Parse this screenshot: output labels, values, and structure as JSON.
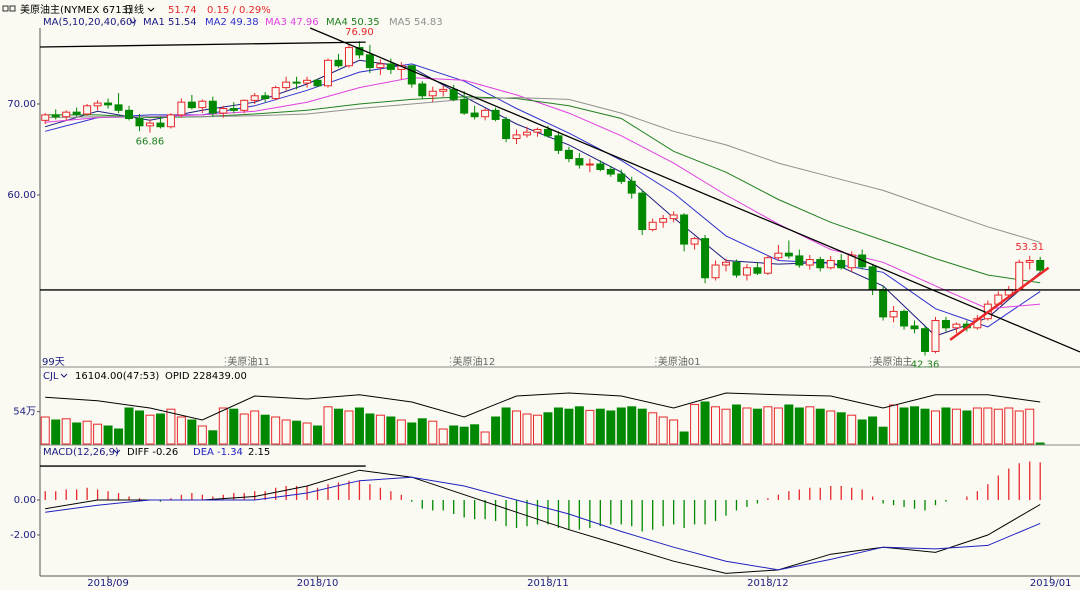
{
  "header": {
    "symbol": "美原油主(NYMEX 6713)",
    "period": "日线",
    "price": "51.74",
    "change": "0.15 / 0.29%"
  },
  "chart_data": [
    {
      "type": "candlestick",
      "title": "MA(5,10,20,40,60)",
      "title_color": "#1a1a80",
      "up_color": "#e8282b",
      "down_color": "#008800",
      "xlim": [
        -0.5,
        98.8
      ],
      "ylim": [
        42.3,
        78.35
      ],
      "yticks": [
        {
          "value": 70,
          "label": "70.00"
        },
        {
          "value": 60,
          "label": "60.00"
        }
      ],
      "span_label": "99天",
      "ohlc": [
        [
          68.2,
          69.0,
          67.8,
          68.8
        ],
        [
          68.8,
          69.4,
          68.3,
          68.6
        ],
        [
          68.6,
          69.3,
          68.2,
          69.1
        ],
        [
          69.1,
          69.6,
          68.6,
          68.9
        ],
        [
          68.9,
          70.0,
          68.7,
          69.8
        ],
        [
          69.8,
          70.4,
          69.3,
          70.1
        ],
        [
          70.1,
          70.6,
          69.5,
          69.9
        ],
        [
          69.9,
          71.2,
          69.0,
          69.3
        ],
        [
          69.3,
          69.8,
          68.2,
          68.4
        ],
        [
          68.4,
          68.9,
          67.0,
          67.6
        ],
        [
          67.6,
          68.3,
          66.86,
          67.9
        ],
        [
          67.9,
          68.6,
          67.3,
          67.5
        ],
        [
          67.5,
          69.0,
          67.3,
          68.8
        ],
        [
          68.8,
          70.6,
          68.5,
          70.2
        ],
        [
          70.2,
          71.0,
          69.4,
          69.6
        ],
        [
          69.6,
          70.5,
          69.0,
          70.3
        ],
        [
          70.3,
          70.8,
          68.6,
          69.0
        ],
        [
          69.0,
          69.8,
          68.5,
          69.5
        ],
        [
          69.5,
          70.2,
          69.0,
          69.3
        ],
        [
          69.3,
          70.5,
          69.0,
          70.4
        ],
        [
          70.4,
          71.2,
          70.0,
          70.9
        ],
        [
          70.9,
          71.3,
          70.2,
          70.6
        ],
        [
          70.6,
          72.0,
          70.4,
          71.8
        ],
        [
          71.8,
          73.0,
          71.5,
          72.4
        ],
        [
          72.4,
          73.0,
          71.6,
          72.3
        ],
        [
          72.3,
          73.0,
          71.8,
          72.6
        ],
        [
          72.6,
          72.8,
          71.9,
          72.0
        ],
        [
          72.0,
          75.0,
          71.8,
          74.8
        ],
        [
          74.8,
          75.5,
          74.0,
          74.2
        ],
        [
          74.2,
          76.6,
          74.0,
          76.2
        ],
        [
          76.2,
          76.9,
          75.0,
          75.4
        ],
        [
          75.4,
          76.5,
          73.4,
          74.0
        ],
        [
          74.0,
          74.9,
          73.2,
          74.4
        ],
        [
          74.4,
          75.0,
          73.3,
          73.8
        ],
        [
          73.8,
          74.6,
          72.7,
          74.2
        ],
        [
          74.2,
          74.3,
          71.8,
          72.2
        ],
        [
          72.2,
          72.5,
          70.6,
          70.9
        ],
        [
          70.9,
          71.9,
          70.2,
          71.4
        ],
        [
          71.4,
          72.0,
          70.8,
          71.6
        ],
        [
          71.6,
          72.1,
          70.3,
          70.5
        ],
        [
          70.5,
          71.4,
          68.8,
          69.0
        ],
        [
          69.0,
          69.8,
          68.3,
          68.6
        ],
        [
          68.6,
          69.5,
          68.2,
          69.3
        ],
        [
          69.3,
          69.6,
          68.1,
          68.3
        ],
        [
          68.3,
          68.6,
          65.8,
          66.2
        ],
        [
          66.2,
          67.2,
          65.6,
          66.6
        ],
        [
          66.6,
          67.5,
          66.3,
          66.9
        ],
        [
          66.9,
          67.4,
          66.4,
          67.2
        ],
        [
          67.2,
          67.6,
          66.3,
          66.5
        ],
        [
          66.5,
          67.0,
          64.5,
          64.9
        ],
        [
          64.9,
          65.3,
          63.6,
          64.0
        ],
        [
          64.0,
          64.6,
          62.9,
          63.3
        ],
        [
          63.3,
          64.0,
          62.5,
          63.4
        ],
        [
          63.4,
          63.8,
          62.6,
          62.8
        ],
        [
          62.8,
          63.2,
          62.0,
          62.3
        ],
        [
          62.3,
          62.8,
          61.2,
          61.5
        ],
        [
          61.5,
          62.0,
          59.6,
          60.2
        ],
        [
          60.2,
          60.6,
          55.6,
          56.2
        ],
        [
          56.2,
          57.4,
          56.0,
          57.0
        ],
        [
          57.0,
          57.8,
          56.4,
          57.4
        ],
        [
          57.4,
          58.2,
          57.0,
          57.8
        ],
        [
          57.8,
          58.0,
          53.8,
          54.6
        ],
        [
          54.6,
          55.4,
          54.0,
          55.2
        ],
        [
          55.2,
          55.6,
          50.3,
          50.9
        ],
        [
          50.9,
          52.8,
          50.6,
          52.3
        ],
        [
          52.3,
          53.0,
          51.6,
          52.6
        ],
        [
          52.6,
          52.9,
          50.9,
          51.2
        ],
        [
          51.2,
          52.4,
          50.6,
          52.0
        ],
        [
          52.0,
          52.6,
          51.2,
          51.4
        ],
        [
          51.4,
          53.4,
          51.2,
          53.1
        ],
        [
          53.1,
          54.5,
          52.8,
          53.6
        ],
        [
          53.6,
          55.0,
          53.0,
          53.3
        ],
        [
          53.3,
          54.0,
          52.0,
          52.3
        ],
        [
          52.3,
          53.4,
          51.8,
          52.9
        ],
        [
          52.9,
          53.2,
          51.6,
          52.0
        ],
        [
          52.0,
          53.3,
          51.8,
          52.8
        ],
        [
          52.8,
          53.5,
          51.8,
          52.0
        ],
        [
          52.0,
          53.8,
          51.5,
          53.4
        ],
        [
          53.4,
          54.0,
          51.8,
          52.1
        ],
        [
          52.1,
          52.4,
          49.0,
          49.6
        ],
        [
          49.6,
          50.0,
          46.2,
          46.6
        ],
        [
          46.6,
          47.8,
          46.0,
          47.2
        ],
        [
          47.2,
          47.4,
          45.2,
          45.6
        ],
        [
          45.6,
          46.2,
          44.8,
          45.3
        ],
        [
          45.3,
          45.6,
          42.36,
          42.8
        ],
        [
          42.8,
          46.6,
          42.6,
          46.2
        ],
        [
          46.2,
          46.6,
          45.0,
          45.4
        ],
        [
          45.4,
          46.0,
          44.8,
          45.8
        ],
        [
          45.8,
          46.2,
          45.0,
          45.4
        ],
        [
          45.4,
          46.8,
          45.2,
          46.4
        ],
        [
          46.4,
          48.4,
          46.2,
          48.0
        ],
        [
          48.0,
          49.4,
          47.8,
          49.0
        ],
        [
          49.0,
          50.0,
          48.6,
          49.6
        ],
        [
          49.6,
          52.9,
          49.4,
          52.6
        ],
        [
          52.6,
          53.31,
          51.8,
          52.8
        ],
        [
          52.8,
          53.2,
          51.5,
          51.74
        ]
      ],
      "line_x": [
        0,
        5,
        10,
        15,
        20,
        25,
        30,
        35,
        40,
        45,
        50,
        55,
        60,
        65,
        70,
        75,
        80,
        85,
        90,
        95
      ],
      "series": [
        {
          "name": "MA1 51.54",
          "color": "#1a1a80",
          "values": [
            67.5,
            69.2,
            68.2,
            69.3,
            70.2,
            72.2,
            74.8,
            74.0,
            70.8,
            67.8,
            65.5,
            62.5,
            57.5,
            52.8,
            52.4,
            52.6,
            50.0,
            44.5,
            46.5,
            51.5
          ]
        },
        {
          "name": "MA2 49.38",
          "color": "#3030d0",
          "values": [
            67.0,
            68.5,
            68.8,
            68.8,
            69.8,
            71.5,
            73.5,
            74.4,
            72.5,
            69.5,
            66.8,
            63.8,
            60.2,
            55.5,
            52.8,
            52.5,
            51.5,
            47.5,
            45.5,
            49.4
          ]
        },
        {
          "name": "MA3 47.96",
          "color": "#e040e0",
          "values": [
            68.0,
            68.5,
            68.6,
            68.8,
            69.2,
            70.2,
            71.8,
            72.9,
            72.6,
            71.0,
            69.0,
            66.5,
            63.5,
            60.0,
            56.8,
            54.0,
            52.6,
            50.0,
            47.5,
            48.0
          ]
        },
        {
          "name": "MA4 50.35",
          "color": "#208020",
          "values": [
            68.8,
            68.8,
            68.5,
            68.6,
            68.9,
            69.3,
            70.0,
            70.5,
            70.8,
            70.6,
            69.8,
            68.4,
            64.8,
            62.5,
            59.5,
            57.0,
            55.0,
            53.0,
            51.2,
            50.35
          ]
        },
        {
          "name": "MA5 54.83",
          "color": "#909090",
          "values": [
            68.5,
            68.6,
            68.6,
            68.6,
            68.7,
            68.9,
            69.5,
            70.0,
            70.5,
            70.7,
            70.5,
            69.0,
            67.0,
            65.5,
            63.5,
            62.0,
            60.5,
            58.5,
            56.5,
            54.8
          ]
        }
      ],
      "price_labels": [
        {
          "value": 76.9,
          "label": "76.90",
          "index": 30,
          "color": "#e8282b",
          "side": "above"
        },
        {
          "value": 66.86,
          "label": "66.86",
          "index": 10,
          "color": "#208020",
          "side": "below"
        },
        {
          "value": 42.36,
          "label": "42.36",
          "index": 84,
          "color": "#208020",
          "side": "below"
        },
        {
          "value": 53.31,
          "label": "53.31",
          "index": 94,
          "color": "#e8282b",
          "side": "above"
        }
      ],
      "contract_marks": [
        {
          "index": 17.2,
          "label": "美原油11"
        },
        {
          "index": 38.7,
          "label": "美原油12"
        },
        {
          "index": 58.3,
          "label": "美原油01"
        },
        {
          "index": 78.8,
          "label": "美原油主"
        }
      ],
      "drawings": [
        {
          "x": [
            -0.5,
            30.6
          ],
          "y": [
            76.26,
            76.8
          ],
          "color": "#000000"
        },
        {
          "x": [
            25.3,
            98.8
          ],
          "y": [
            78.35,
            42.75
          ],
          "color": "#000000"
        },
        {
          "x": [
            -0.5,
            98.8
          ],
          "y": [
            49.56,
            49.56
          ],
          "color": "#000000"
        },
        {
          "x": [
            86.4,
            95.8
          ],
          "y": [
            44.07,
            52.0
          ],
          "color": "#e8282b"
        }
      ]
    },
    {
      "type": "volume",
      "title": "CJL",
      "info": "16104.00(47:53)",
      "opid": "OPID 228439.00",
      "xlim": [
        -0.5,
        98.8
      ],
      "ylim": [
        0,
        110
      ],
      "yticks": [
        {
          "value": 54,
          "label": "54万"
        }
      ],
      "values": [
        45,
        40,
        42,
        35,
        38,
        33,
        30,
        25,
        60,
        55,
        48,
        50,
        58,
        45,
        40,
        30,
        22,
        60,
        58,
        50,
        55,
        48,
        45,
        40,
        38,
        35,
        30,
        62,
        58,
        55,
        60,
        50,
        48,
        45,
        40,
        35,
        42,
        38,
        25,
        30,
        28,
        32,
        20,
        45,
        60,
        55,
        50,
        48,
        52,
        60,
        58,
        62,
        56,
        58,
        55,
        60,
        62,
        58,
        52,
        45,
        40,
        20,
        66,
        70,
        62,
        58,
        65,
        60,
        58,
        62,
        60,
        65,
        60,
        62,
        58,
        55,
        52,
        48,
        40,
        45,
        28,
        65,
        60,
        62,
        58,
        55,
        60,
        58,
        55,
        60,
        60,
        58,
        60,
        55,
        58,
        1.6
      ],
      "line_x": [
        0,
        5,
        10,
        15,
        20,
        25,
        30,
        35,
        40,
        45,
        50,
        55,
        60,
        65,
        70,
        75,
        80,
        85,
        90,
        95
      ],
      "series": [
        {
          "color": "#000000",
          "values": [
            78,
            72,
            60,
            40,
            80,
            75,
            82,
            70,
            45,
            80,
            85,
            80,
            60,
            85,
            82,
            80,
            60,
            82,
            82,
            70
          ]
        }
      ]
    },
    {
      "type": "macd",
      "title": "MACD(12,26,9)",
      "macd_label": "2.15",
      "xlim": [
        -0.5,
        98.8
      ],
      "ylim": [
        -4.29,
        2.4
      ],
      "yticks": [
        {
          "value": 0,
          "label": "0.00"
        },
        {
          "value": -2,
          "label": "-2.00"
        }
      ],
      "xticks": [
        {
          "value": 6,
          "label": "2018/09"
        },
        {
          "value": 26,
          "label": "2018/10"
        },
        {
          "value": 48,
          "label": "2018/11"
        },
        {
          "value": 69,
          "label": "2018/12"
        },
        {
          "value": 96,
          "label": "2019/01"
        }
      ],
      "up_color": "#e8282b",
      "down_color": "#008800",
      "values": [
        0.5,
        0.5,
        0.6,
        0.6,
        0.7,
        0.6,
        0.5,
        0.4,
        0.2,
        0.1,
        0.0,
        -0.1,
        0.1,
        0.3,
        0.4,
        0.3,
        0.2,
        0.3,
        0.4,
        0.4,
        0.5,
        0.5,
        0.7,
        0.8,
        0.8,
        0.8,
        0.7,
        0.9,
        1.0,
        1.1,
        1.1,
        0.9,
        0.7,
        0.5,
        0.3,
        -0.1,
        -0.5,
        -0.6,
        -0.6,
        -0.8,
        -1.0,
        -1.1,
        -1.1,
        -1.2,
        -1.5,
        -1.6,
        -1.5,
        -1.4,
        -1.4,
        -1.6,
        -1.7,
        -1.7,
        -1.6,
        -1.5,
        -1.4,
        -1.4,
        -1.5,
        -1.8,
        -1.7,
        -1.5,
        -1.4,
        -1.6,
        -1.4,
        -1.4,
        -1.2,
        -0.9,
        -0.6,
        -0.4,
        -0.2,
        0.1,
        0.3,
        0.5,
        0.6,
        0.7,
        0.7,
        0.8,
        0.8,
        0.7,
        0.6,
        0.2,
        -0.2,
        -0.3,
        -0.4,
        -0.5,
        -0.6,
        -0.3,
        -0.1,
        0.0,
        0.2,
        0.5,
        0.9,
        1.4,
        1.8,
        2.1,
        2.2,
        2.15
      ],
      "line_x": [
        0,
        5,
        10,
        15,
        20,
        25,
        30,
        35,
        40,
        45,
        50,
        55,
        60,
        65,
        70,
        75,
        80,
        85,
        90,
        95
      ],
      "series": [
        {
          "name": "DIFF -0.26",
          "color": "#000000",
          "values": [
            -0.5,
            0.0,
            0.0,
            0.0,
            0.2,
            0.8,
            1.7,
            1.3,
            0.3,
            -0.7,
            -1.7,
            -2.6,
            -3.5,
            -4.2,
            -4.0,
            -3.1,
            -2.7,
            -3.0,
            -2.0,
            -0.26
          ]
        },
        {
          "name": "DEA -1.34",
          "color": "#2020c0",
          "values": [
            -0.7,
            -0.3,
            0.0,
            0.0,
            0.0,
            0.4,
            1.1,
            1.3,
            0.8,
            0.0,
            -0.8,
            -1.8,
            -2.7,
            -3.5,
            -4.0,
            -3.4,
            -2.7,
            -2.8,
            -2.6,
            -1.34
          ]
        }
      ],
      "drawings": [
        {
          "x": [
            -0.5,
            30.6
          ],
          "y": [
            1.94,
            1.94
          ],
          "color": "#000000"
        }
      ]
    }
  ]
}
